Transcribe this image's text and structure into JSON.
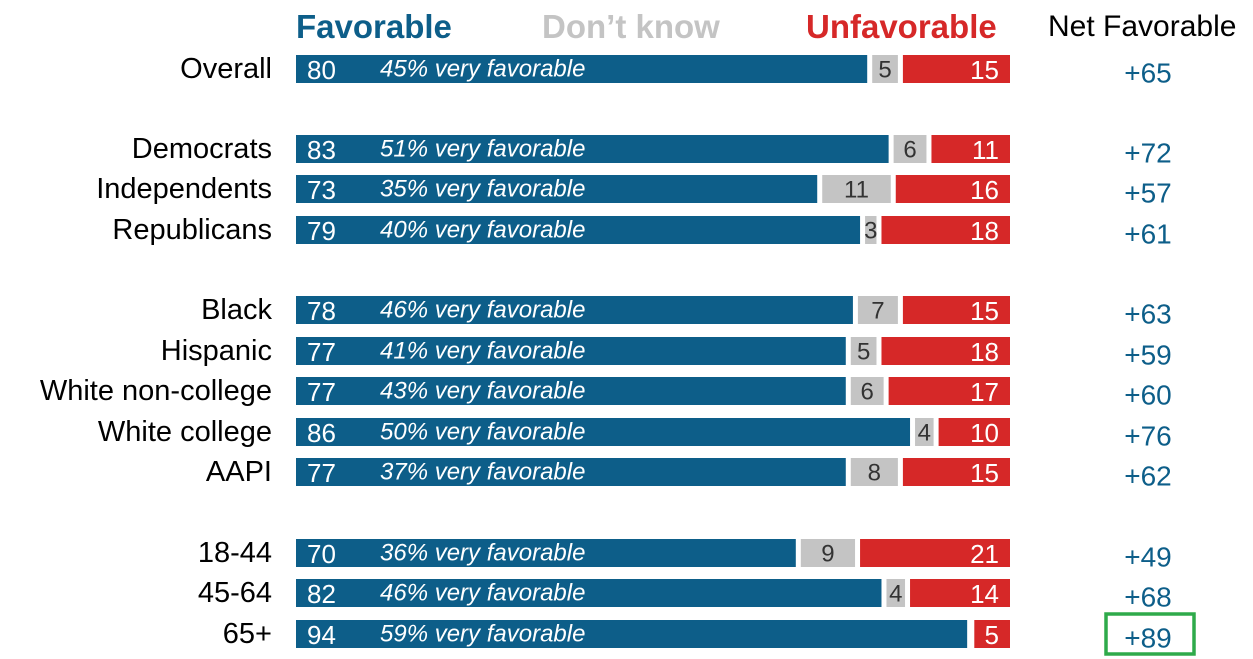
{
  "chart_data": {
    "type": "bar",
    "stacked": true,
    "orientation": "horizontal",
    "legend": [
      "Favorable",
      "Don’t know",
      "Unfavorable"
    ],
    "net_header": "Net Favorable",
    "colors": {
      "favorable": "#0d5e89",
      "dont_know": "#c4c4c4",
      "unfavorable": "#d62828",
      "net_text": "#0d5e89",
      "highlight_box": "#2eaa4a"
    },
    "categories": [
      "Overall",
      "Democrats",
      "Independents",
      "Republicans",
      "Black",
      "Hispanic",
      "White non-college",
      "White college",
      "AAPI",
      "18-44",
      "45-64",
      "65+"
    ],
    "series": [
      {
        "name": "Favorable",
        "values": [
          80,
          83,
          73,
          79,
          78,
          77,
          77,
          86,
          77,
          70,
          82,
          94
        ]
      },
      {
        "name": "Don’t know",
        "values": [
          5,
          6,
          11,
          3,
          7,
          5,
          6,
          4,
          8,
          9,
          4,
          null
        ]
      },
      {
        "name": "Unfavorable",
        "values": [
          15,
          11,
          16,
          18,
          15,
          18,
          17,
          10,
          15,
          21,
          14,
          5
        ]
      }
    ],
    "very_favorable_labels": [
      "45% very favorable",
      "51% very favorable",
      "35% very favorable",
      "40% very favorable",
      "46% very favorable",
      "41% very favorable",
      "43% very favorable",
      "50% very favorable",
      "37% very favorable",
      "36% very favorable",
      "46% very favorable",
      "59% very favorable"
    ],
    "net_favorable_labels": [
      "+65",
      "+72",
      "+57",
      "+61",
      "+63",
      "+59",
      "+60",
      "+76",
      "+62",
      "+49",
      "+68",
      "+89"
    ],
    "highlighted_category": "65+",
    "xlim": [
      0,
      100
    ]
  }
}
